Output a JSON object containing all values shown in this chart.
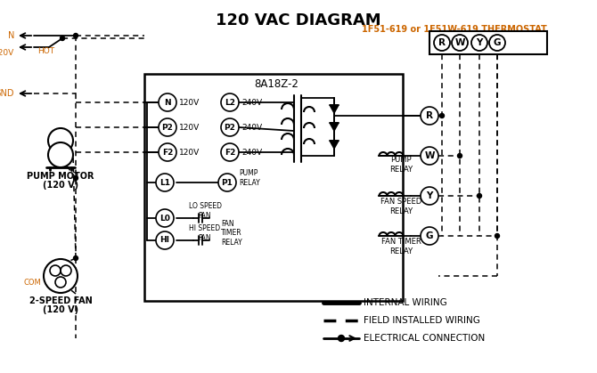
{
  "title": "120 VAC DIAGRAM",
  "bg_color": "#ffffff",
  "orange": "#cc6600",
  "black": "#000000",
  "thermostat_label": "1F51-619 or 1F51W-619 THERMOSTAT",
  "board_label": "8A18Z-2",
  "pump_motor_label": "PUMP MOTOR",
  "pump_motor_label2": "(120 V)",
  "fan_label": "2-SPEED FAN",
  "fan_label2": "(120 V)",
  "legend_internal": "INTERNAL WIRING",
  "legend_field": "FIELD INSTALLED WIRING",
  "legend_elec": "ELECTRICAL CONNECTION",
  "term_labels": [
    "R",
    "W",
    "Y",
    "G"
  ],
  "left_terms": [
    "N",
    "P2",
    "F2"
  ],
  "right_terms": [
    "L2",
    "P2",
    "F2"
  ],
  "left_volts": [
    "120V",
    "120V",
    "120V"
  ],
  "right_volts": [
    "240V",
    "240V",
    "240V"
  ],
  "bottom_left": [
    "L1",
    "L0",
    "HI"
  ],
  "relay_terms": [
    "R",
    "W",
    "Y",
    "G"
  ]
}
